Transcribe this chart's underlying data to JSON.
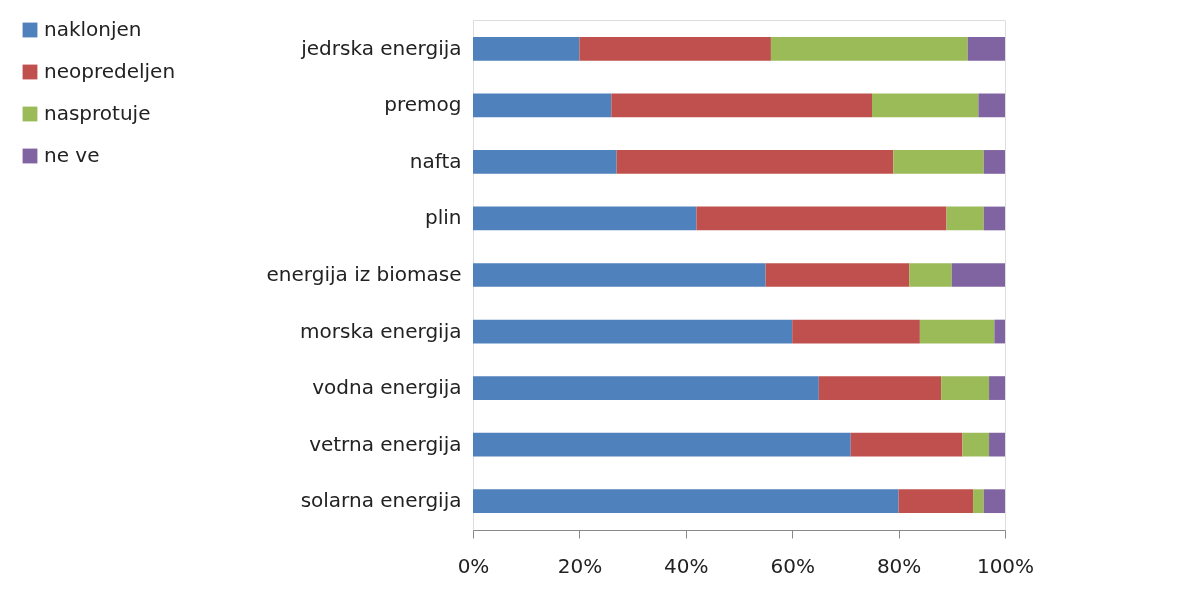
{
  "chart_data": {
    "type": "bar",
    "orientation": "horizontal",
    "stacked": true,
    "categories": [
      "jedrska energija",
      "premog",
      "nafta",
      "plin",
      "energija iz biomase",
      "morska energija",
      "vodna energija",
      "vetrna energija",
      "solarna energija"
    ],
    "series": [
      {
        "name": "naklonjen",
        "color": "#4f81bd",
        "values": [
          20,
          26,
          27,
          42,
          55,
          60,
          65,
          71,
          80
        ]
      },
      {
        "name": "neopredeljen",
        "color": "#c0504d",
        "values": [
          36,
          49,
          52,
          47,
          27,
          24,
          23,
          21,
          14
        ]
      },
      {
        "name": "nasprotuje",
        "color": "#9bbb59",
        "values": [
          37,
          20,
          17,
          7,
          8,
          14,
          9,
          5,
          2
        ]
      },
      {
        "name": "ne ve",
        "color": "#8064a2",
        "values": [
          7,
          5,
          4,
          4,
          10,
          2,
          3,
          3,
          4
        ]
      }
    ],
    "xlim": [
      0,
      100
    ],
    "xticks": [
      {
        "value": 0,
        "label": "0%"
      },
      {
        "value": 20,
        "label": "20%"
      },
      {
        "value": 40,
        "label": "40%"
      },
      {
        "value": 60,
        "label": "60%"
      },
      {
        "value": 80,
        "label": "80%"
      },
      {
        "value": 100,
        "label": "100%"
      }
    ],
    "grid": false,
    "legend": "left"
  }
}
